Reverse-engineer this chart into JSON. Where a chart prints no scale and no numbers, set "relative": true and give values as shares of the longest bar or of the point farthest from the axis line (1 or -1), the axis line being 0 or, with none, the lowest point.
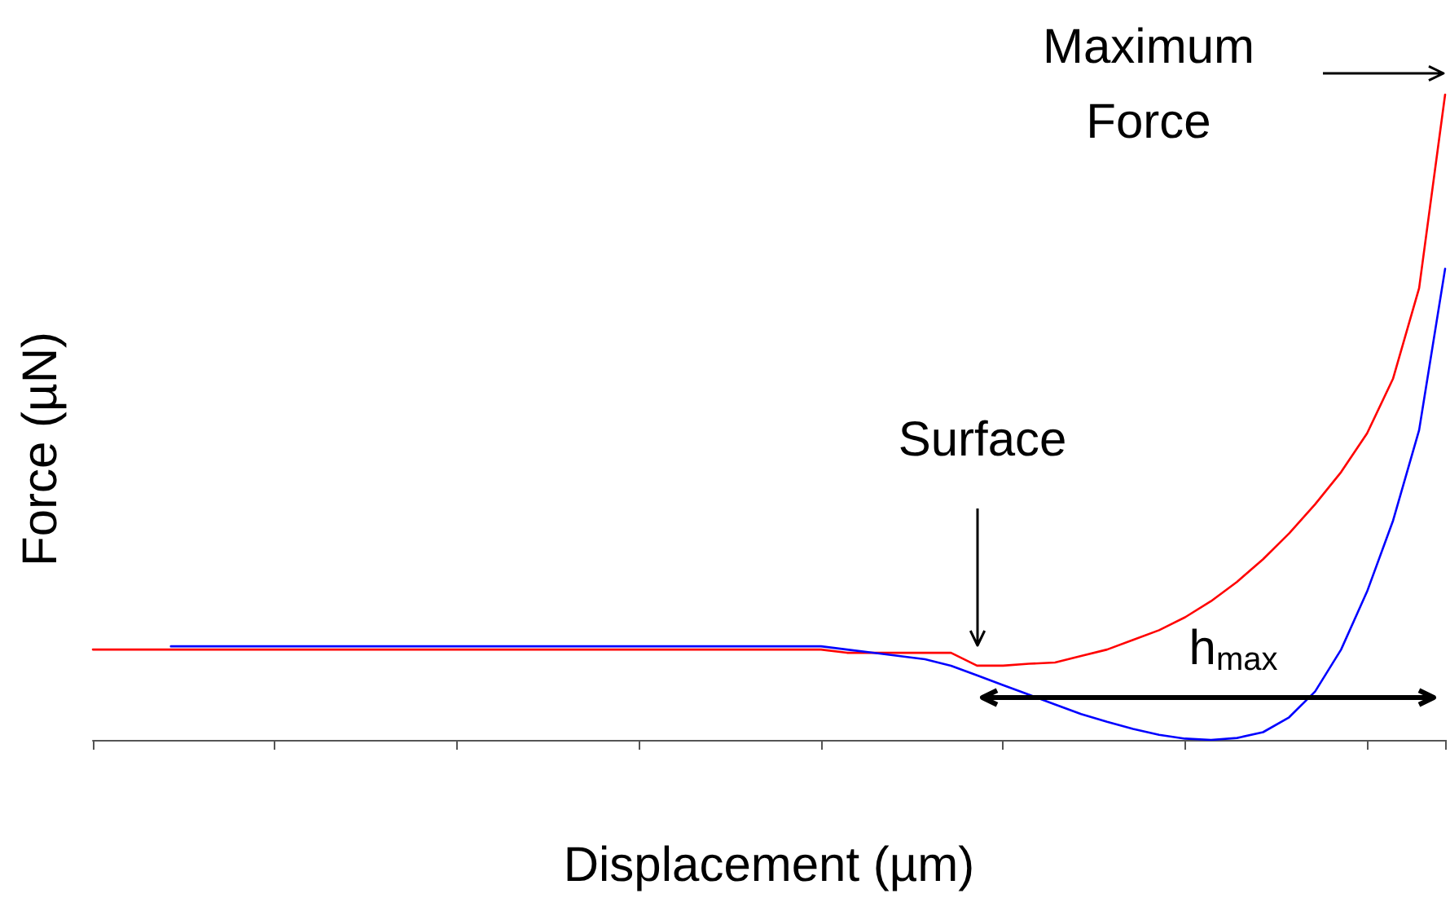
{
  "chart_data": {
    "type": "line",
    "relative": true,
    "xlabel": "Displacement (µm)",
    "ylabel": "Force (µN)",
    "categories": [
      null,
      null,
      null,
      null,
      null,
      null,
      null,
      null,
      null,
      null,
      null,
      null,
      null,
      null,
      null,
      null,
      null,
      null,
      null,
      null,
      null,
      null,
      null,
      null,
      null,
      null,
      null,
      null,
      null,
      null,
      null,
      null,
      null,
      null,
      null,
      null,
      null,
      null,
      null,
      null,
      null,
      null,
      null,
      null,
      null,
      null,
      null,
      null,
      null,
      null,
      null,
      null,
      null
    ],
    "series": [
      {
        "color": "#ff0000",
        "values": [
          0.14,
          0.14,
          0.14,
          0.14,
          0.14,
          0.14,
          0.14,
          0.14,
          0.14,
          0.14,
          0.14,
          0.14,
          0.14,
          0.14,
          0.14,
          0.14,
          0.14,
          0.14,
          0.14,
          0.14,
          0.14,
          0.14,
          0.14,
          0.14,
          0.14,
          0.14,
          0.14,
          0.14,
          0.14,
          0.135,
          0.135,
          0.135,
          0.135,
          0.135,
          0.115,
          0.115,
          0.118,
          0.12,
          0.13,
          0.14,
          0.155,
          0.17,
          0.19,
          0.215,
          0.245,
          0.28,
          0.32,
          0.365,
          0.415,
          0.475,
          0.56,
          0.7,
          1
        ]
      },
      {
        "color": "#0000ff",
        "values": [
          null,
          null,
          null,
          0.145,
          0.145,
          0.145,
          0.145,
          0.145,
          0.145,
          0.145,
          0.145,
          0.145,
          0.145,
          0.145,
          0.145,
          0.145,
          0.145,
          0.145,
          0.145,
          0.145,
          0.145,
          0.145,
          0.145,
          0.145,
          0.145,
          0.145,
          0.145,
          0.145,
          0.145,
          0.14,
          0.135,
          0.13,
          0.125,
          0.115,
          0.1,
          0.085,
          0.07,
          0.055,
          0.04,
          0.028,
          0.017,
          0.008,
          0.002,
          0,
          0.003,
          0.012,
          0.035,
          0.075,
          0.14,
          0.23,
          0.34,
          0.48,
          0.73
        ]
      }
    ],
    "annotations": [
      "Surface",
      "Maximum\nForce",
      "h$_{max}$"
    ],
    "grid": false,
    "marker": "none",
    "line_style": "solid"
  }
}
